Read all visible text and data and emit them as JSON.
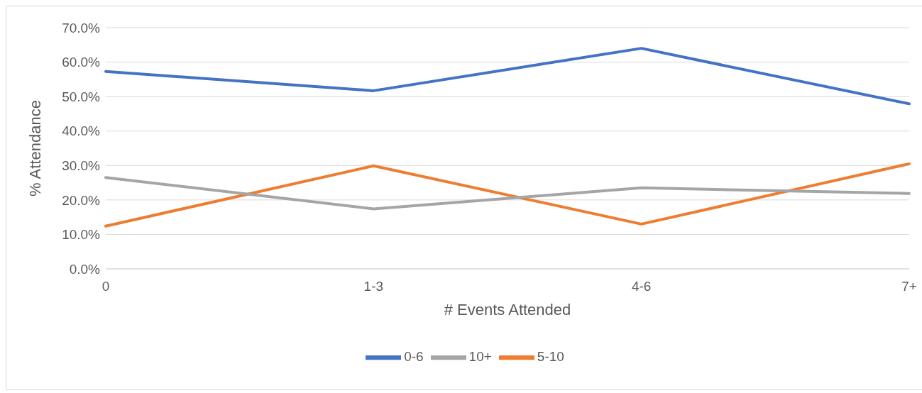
{
  "chart_data": {
    "type": "line",
    "xlabel": "# Events Attended",
    "ylabel": "% Attendance",
    "categories": [
      "0",
      "1-3",
      "4-6",
      "7+"
    ],
    "series": [
      {
        "name": "0-6",
        "color": "#4472c4",
        "values": [
          57.3,
          51.7,
          64.0,
          47.9
        ]
      },
      {
        "name": "5-10",
        "color": "#ed7d31",
        "values": [
          12.4,
          29.9,
          13.0,
          30.5
        ]
      },
      {
        "name": "10+",
        "color": "#a5a5a5",
        "values": [
          26.5,
          17.4,
          23.5,
          21.9
        ]
      }
    ],
    "ylim": [
      0,
      70
    ],
    "yticks": [
      {
        "value": 0,
        "label": "0.0%"
      },
      {
        "value": 10,
        "label": "10.0%"
      },
      {
        "value": 20,
        "label": "20.0%"
      },
      {
        "value": 30,
        "label": "30.0%"
      },
      {
        "value": 40,
        "label": "40.0%"
      },
      {
        "value": 50,
        "label": "50.0%"
      },
      {
        "value": 60,
        "label": "60.0%"
      },
      {
        "value": 70,
        "label": "70.0%"
      }
    ],
    "grid": "y",
    "legend": "bottom",
    "marker": "none",
    "line_style": "solid"
  }
}
